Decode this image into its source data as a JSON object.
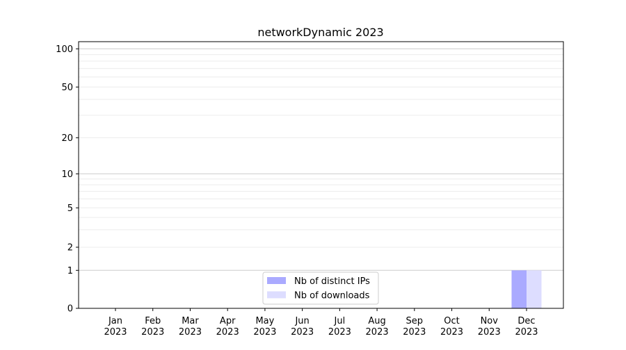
{
  "chart_data": {
    "type": "bar",
    "title": "networkDynamic 2023",
    "xlabel": "",
    "ylabel": "",
    "categories": [
      "Jan\n2023",
      "Feb\n2023",
      "Mar\n2023",
      "Apr\n2023",
      "May\n2023",
      "Jun\n2023",
      "Jul\n2023",
      "Aug\n2023",
      "Sep\n2023",
      "Oct\n2023",
      "Nov\n2023",
      "Dec\n2023"
    ],
    "series": [
      {
        "name": "Nb of distinct IPs",
        "color": "#aaaaff",
        "values": [
          0,
          0,
          0,
          0,
          0,
          0,
          0,
          0,
          0,
          0,
          0,
          1
        ]
      },
      {
        "name": "Nb of downloads",
        "color": "#ddddff",
        "values": [
          0,
          0,
          0,
          0,
          0,
          0,
          0,
          0,
          0,
          0,
          0,
          1
        ]
      }
    ],
    "yscale": "symlog",
    "ylim": [
      0,
      110
    ],
    "yticks": [
      0,
      1,
      2,
      5,
      10,
      20,
      50,
      100
    ],
    "ytick_labels": [
      "0",
      "1",
      "2",
      "5",
      "10",
      "20",
      "50",
      "100"
    ],
    "grid": true,
    "legend_position": "lower-center"
  }
}
